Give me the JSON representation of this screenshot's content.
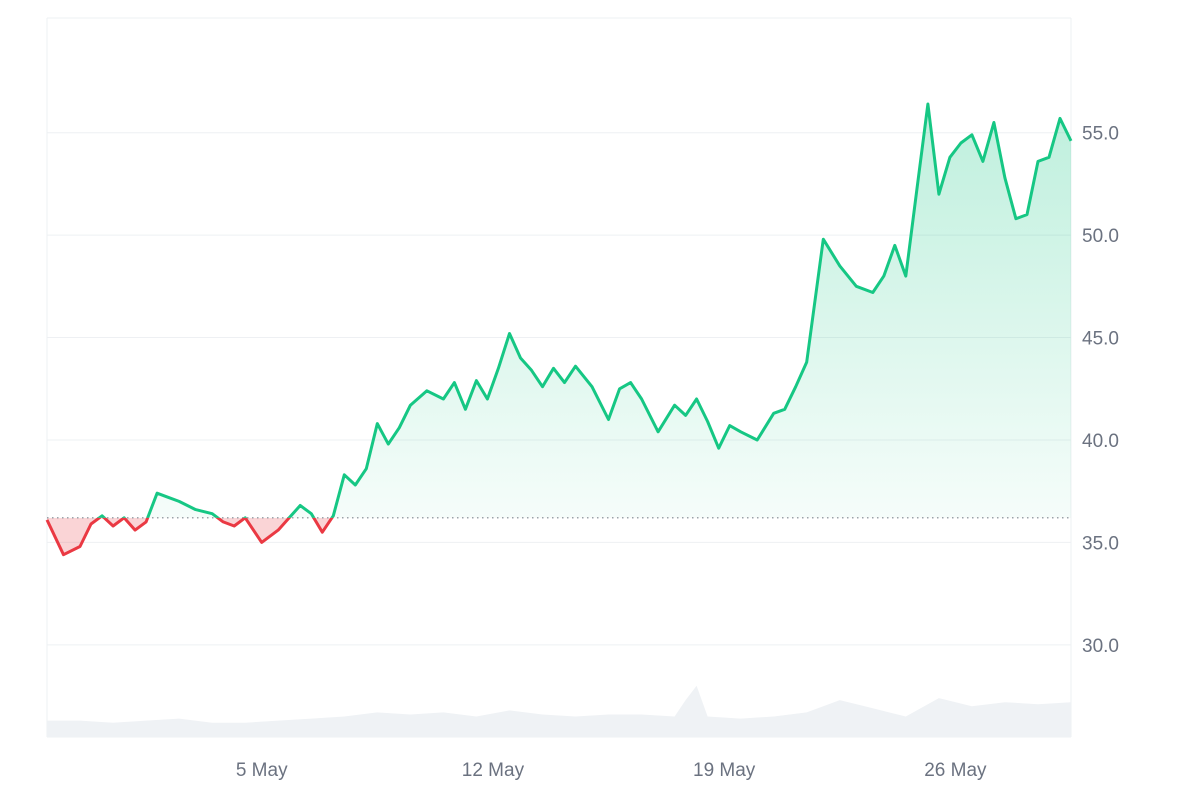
{
  "chart_data": {
    "type": "area",
    "baseline_value": 36.2,
    "up_color": "#16c784",
    "down_color": "#ea3943",
    "volume_color": "#eff2f5",
    "grid": true,
    "y_axis_side": "right",
    "ylim": [
      25.5,
      60.6
    ],
    "y_ticks": [
      "30.0",
      "35.0",
      "40.0",
      "45.0",
      "50.0",
      "55.0"
    ],
    "x_ticks": [
      "5 May",
      "12 May",
      "19 May",
      "26 May"
    ],
    "xlim": [
      "2024-04-29",
      "2024-05-30"
    ],
    "series": [
      {
        "values": [
          [
            "2024-04-29",
            36.1
          ],
          [
            "2024-04-29",
            34.4
          ],
          [
            "2024-04-30",
            34.8
          ],
          [
            "2024-04-30",
            35.9
          ],
          [
            "2024-04-30",
            36.3
          ],
          [
            "2024-05-01",
            35.8
          ],
          [
            "2024-05-01",
            36.2
          ],
          [
            "2024-05-01",
            35.6
          ],
          [
            "2024-05-02",
            36.0
          ],
          [
            "2024-05-02",
            37.4
          ],
          [
            "2024-05-02",
            37.2
          ],
          [
            "2024-05-03",
            37.0
          ],
          [
            "2024-05-03",
            36.6
          ],
          [
            "2024-05-04",
            36.4
          ],
          [
            "2024-05-04",
            36.0
          ],
          [
            "2024-05-04",
            35.8
          ],
          [
            "2024-05-05",
            36.2
          ],
          [
            "2024-05-05",
            35.0
          ],
          [
            "2024-05-06",
            35.6
          ],
          [
            "2024-05-06",
            36.2
          ],
          [
            "2024-05-06",
            36.8
          ],
          [
            "2024-05-07",
            36.4
          ],
          [
            "2024-05-07",
            35.5
          ],
          [
            "2024-05-07",
            36.3
          ],
          [
            "2024-05-08",
            38.3
          ],
          [
            "2024-05-08",
            37.8
          ],
          [
            "2024-05-08",
            38.6
          ],
          [
            "2024-05-09",
            40.8
          ],
          [
            "2024-05-09",
            39.8
          ],
          [
            "2024-05-09",
            40.6
          ],
          [
            "2024-05-10",
            41.7
          ],
          [
            "2024-05-10",
            42.4
          ],
          [
            "2024-05-11",
            42.0
          ],
          [
            "2024-05-11",
            42.8
          ],
          [
            "2024-05-11",
            41.5
          ],
          [
            "2024-05-12",
            42.9
          ],
          [
            "2024-05-12",
            42.0
          ],
          [
            "2024-05-12",
            43.5
          ],
          [
            "2024-05-13",
            45.2
          ],
          [
            "2024-05-13",
            44.0
          ],
          [
            "2024-05-13",
            43.4
          ],
          [
            "2024-05-14",
            42.6
          ],
          [
            "2024-05-14",
            43.5
          ],
          [
            "2024-05-14",
            42.8
          ],
          [
            "2024-05-15",
            43.6
          ],
          [
            "2024-05-15",
            42.6
          ],
          [
            "2024-05-16",
            41.0
          ],
          [
            "2024-05-16",
            42.5
          ],
          [
            "2024-05-16",
            42.8
          ],
          [
            "2024-05-17",
            42.0
          ],
          [
            "2024-05-17",
            40.4
          ],
          [
            "2024-05-18",
            41.7
          ],
          [
            "2024-05-18",
            41.2
          ],
          [
            "2024-05-18",
            42.0
          ],
          [
            "2024-05-19",
            40.9
          ],
          [
            "2024-05-19",
            39.6
          ],
          [
            "2024-05-19",
            40.7
          ],
          [
            "2024-05-20",
            40.4
          ],
          [
            "2024-05-20",
            40.0
          ],
          [
            "2024-05-21",
            41.3
          ],
          [
            "2024-05-21",
            41.5
          ],
          [
            "2024-05-21",
            42.6
          ],
          [
            "2024-05-22",
            43.8
          ],
          [
            "2024-05-22",
            49.8
          ],
          [
            "2024-05-23",
            48.5
          ],
          [
            "2024-05-23",
            47.5
          ],
          [
            "2024-05-24",
            47.2
          ],
          [
            "2024-05-24",
            48.0
          ],
          [
            "2024-05-24",
            49.5
          ],
          [
            "2024-05-25",
            48.0
          ],
          [
            "2024-05-25",
            52.2
          ],
          [
            "2024-05-25",
            56.4
          ],
          [
            "2024-05-26",
            52.0
          ],
          [
            "2024-05-26",
            53.8
          ],
          [
            "2024-05-26",
            54.5
          ],
          [
            "2024-05-27",
            54.9
          ],
          [
            "2024-05-27",
            53.6
          ],
          [
            "2024-05-27",
            55.5
          ],
          [
            "2024-05-28",
            52.8
          ],
          [
            "2024-05-28",
            50.8
          ],
          [
            "2024-05-28",
            51.0
          ],
          [
            "2024-05-29",
            53.6
          ],
          [
            "2024-05-29",
            53.8
          ],
          [
            "2024-05-29",
            55.7
          ],
          [
            "2024-05-30",
            54.6
          ]
        ]
      },
      {
        "values": [
          [
            "2024-04-29",
            26.3
          ],
          [
            "2024-04-30",
            26.3
          ],
          [
            "2024-05-01",
            26.2
          ],
          [
            "2024-05-02",
            26.3
          ],
          [
            "2024-05-03",
            26.4
          ],
          [
            "2024-05-04",
            26.2
          ],
          [
            "2024-05-05",
            26.2
          ],
          [
            "2024-05-06",
            26.3
          ],
          [
            "2024-05-07",
            26.4
          ],
          [
            "2024-05-08",
            26.5
          ],
          [
            "2024-05-09",
            26.7
          ],
          [
            "2024-05-10",
            26.6
          ],
          [
            "2024-05-11",
            26.7
          ],
          [
            "2024-05-12",
            26.5
          ],
          [
            "2024-05-13",
            26.8
          ],
          [
            "2024-05-14",
            26.6
          ],
          [
            "2024-05-15",
            26.5
          ],
          [
            "2024-05-16",
            26.6
          ],
          [
            "2024-05-17",
            26.6
          ],
          [
            "2024-05-18",
            26.5
          ],
          [
            "2024-05-18",
            27.3
          ],
          [
            "2024-05-18",
            28.0
          ],
          [
            "2024-05-19",
            26.5
          ],
          [
            "2024-05-20",
            26.4
          ],
          [
            "2024-05-21",
            26.5
          ],
          [
            "2024-05-22",
            26.7
          ],
          [
            "2024-05-23",
            27.3
          ],
          [
            "2024-05-24",
            26.9
          ],
          [
            "2024-05-25",
            26.5
          ],
          [
            "2024-05-26",
            27.4
          ],
          [
            "2024-05-27",
            27.0
          ],
          [
            "2024-05-28",
            27.2
          ],
          [
            "2024-05-29",
            27.1
          ],
          [
            "2024-05-30",
            27.2
          ]
        ]
      }
    ]
  }
}
